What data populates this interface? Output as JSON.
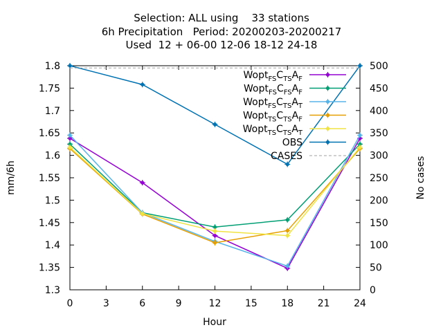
{
  "chart_data": {
    "type": "line",
    "title_lines": [
      "Selection: ALL using    33 stations",
      "6h Precipitation   Period: 20200203-20200217",
      "Used  12 + 06-00 12-06 18-12 24-18"
    ],
    "xlabel": "Hour",
    "ylabel": "mm/6h",
    "y2label": "No cases",
    "xlim": [
      0,
      24
    ],
    "ylim": [
      1.3,
      1.8
    ],
    "y2lim": [
      0,
      500
    ],
    "xticks": [
      "0",
      "3",
      "6",
      "9",
      "12",
      "15",
      "18",
      "21",
      "24"
    ],
    "yticks": [
      "1.3",
      "1.35",
      "1.4",
      "1.45",
      "1.5",
      "1.55",
      "1.6",
      "1.65",
      "1.7",
      "1.75",
      "1.8"
    ],
    "y2ticks": [
      "0",
      "50",
      "100",
      "150",
      "200",
      "250",
      "300",
      "350",
      "400",
      "450",
      "500"
    ],
    "legend_position": "top-right",
    "grid": false,
    "series": [
      {
        "name": "Wopt FS CTS AF",
        "name_parts": [
          [
            "Wopt",
            ""
          ],
          [
            "FS",
            "sub"
          ],
          [
            "C",
            ""
          ],
          [
            "TS",
            "sub"
          ],
          [
            "A",
            ""
          ],
          [
            "F",
            "sub"
          ]
        ],
        "color": "#9400d3",
        "axis": "y",
        "x": [
          0,
          6,
          12,
          18,
          24
        ],
        "values": [
          1.638,
          1.539,
          1.421,
          1.348,
          1.638
        ]
      },
      {
        "name": "Wopt FS CFS AF",
        "name_parts": [
          [
            "Wopt",
            ""
          ],
          [
            "FS",
            "sub"
          ],
          [
            "C",
            ""
          ],
          [
            "FS",
            "sub"
          ],
          [
            "A",
            ""
          ],
          [
            "F",
            "sub"
          ]
        ],
        "color": "#009e73",
        "axis": "y",
        "x": [
          0,
          6,
          12,
          18,
          24
        ],
        "values": [
          1.625,
          1.472,
          1.44,
          1.456,
          1.625
        ]
      },
      {
        "name": "Wopt FS CTS AT",
        "name_parts": [
          [
            "Wopt",
            ""
          ],
          [
            "FS",
            "sub"
          ],
          [
            "C",
            ""
          ],
          [
            "TS",
            "sub"
          ],
          [
            "A",
            ""
          ],
          [
            "T",
            "sub"
          ]
        ],
        "color": "#56b4e9",
        "axis": "y",
        "x": [
          0,
          6,
          12,
          18,
          24
        ],
        "values": [
          1.645,
          1.472,
          1.408,
          1.353,
          1.645
        ]
      },
      {
        "name": "Wopt TS CTS AF",
        "name_parts": [
          [
            "Wopt",
            ""
          ],
          [
            "TS",
            "sub"
          ],
          [
            "C",
            ""
          ],
          [
            "TS",
            "sub"
          ],
          [
            "A",
            ""
          ],
          [
            "F",
            "sub"
          ]
        ],
        "color": "#e69f00",
        "axis": "y",
        "x": [
          0,
          6,
          12,
          18,
          24
        ],
        "values": [
          1.615,
          1.469,
          1.405,
          1.432,
          1.615
        ]
      },
      {
        "name": "Wopt TS CTS AT",
        "name_parts": [
          [
            "Wopt",
            ""
          ],
          [
            "TS",
            "sub"
          ],
          [
            "C",
            ""
          ],
          [
            "TS",
            "sub"
          ],
          [
            "A",
            ""
          ],
          [
            "T",
            "sub"
          ]
        ],
        "color": "#f0e442",
        "axis": "y",
        "x": [
          0,
          6,
          12,
          18,
          24
        ],
        "values": [
          1.618,
          1.47,
          1.431,
          1.421,
          1.618
        ]
      },
      {
        "name": "OBS",
        "name_parts": [
          [
            "OBS",
            ""
          ]
        ],
        "color": "#0072b2",
        "axis": "y",
        "x": [
          0,
          6,
          12,
          18,
          24
        ],
        "values": [
          1.8,
          1.758,
          1.669,
          1.58,
          1.8
        ]
      },
      {
        "name": "CASES",
        "name_parts": [
          [
            "CASES",
            ""
          ]
        ],
        "color": "#a0a0a0",
        "axis": "y2",
        "dashed": true,
        "x": [
          0,
          6,
          12,
          18,
          24
        ],
        "values": [
          495,
          495,
          495,
          495,
          495
        ]
      }
    ]
  }
}
